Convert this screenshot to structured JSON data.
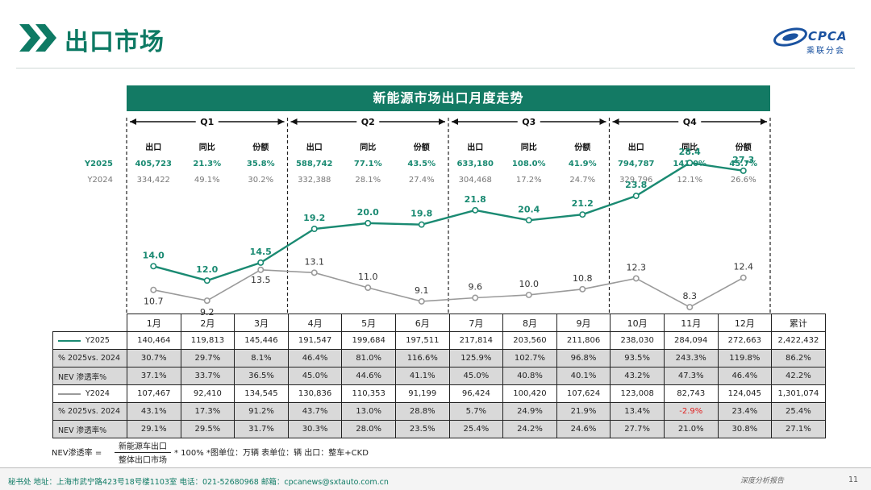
{
  "header": {
    "title": "出口市场",
    "logo_text": "CPCA",
    "logo_sub": "乘联分会"
  },
  "banner": "新能源市场出口月度走势",
  "chart_data": {
    "type": "line",
    "title": "新能源市场出口月度走势",
    "categories": [
      "1月",
      "2月",
      "3月",
      "4月",
      "5月",
      "6月",
      "7月",
      "8月",
      "9月",
      "10月",
      "11月",
      "12月"
    ],
    "series": [
      {
        "name": "Y2025",
        "color": "#1a8a72",
        "values": [
          14.0,
          12.0,
          14.5,
          19.2,
          20.0,
          19.8,
          21.8,
          20.4,
          21.2,
          23.8,
          28.4,
          27.3
        ]
      },
      {
        "name": "Y2024",
        "color": "#9a9a9a",
        "values": [
          10.7,
          9.2,
          13.5,
          13.1,
          11.0,
          9.1,
          9.6,
          10.0,
          10.8,
          12.3,
          8.3,
          12.4
        ]
      }
    ],
    "ylim": [
      0,
      32
    ],
    "quarters": [
      {
        "label": "Q1",
        "cols": [
          "出口",
          "同比",
          "份额"
        ],
        "y2025": [
          "405,723",
          "21.3%",
          "35.8%"
        ],
        "y2024": [
          "334,422",
          "49.1%",
          "30.2%"
        ]
      },
      {
        "label": "Q2",
        "cols": [
          "出口",
          "同比",
          "份额"
        ],
        "y2025": [
          "588,742",
          "77.1%",
          "43.5%"
        ],
        "y2024": [
          "332,388",
          "28.1%",
          "27.4%"
        ]
      },
      {
        "label": "Q3",
        "cols": [
          "出口",
          "同比",
          "份额"
        ],
        "y2025": [
          "633,180",
          "108.0%",
          "41.9%"
        ],
        "y2024": [
          "304,468",
          "17.2%",
          "24.7%"
        ]
      },
      {
        "label": "Q4",
        "cols": [
          "出口",
          "同比",
          "份额"
        ],
        "y2025": [
          "794,787",
          "141.0%",
          "45.7%"
        ],
        "y2024": [
          "329,796",
          "12.1%",
          "26.6%"
        ]
      }
    ],
    "quarter_row_labels": [
      "Y2025",
      "Y2024"
    ]
  },
  "table": {
    "headers": [
      "1月",
      "2月",
      "3月",
      "4月",
      "5月",
      "6月",
      "7月",
      "8月",
      "9月",
      "10月",
      "11月",
      "12月",
      "累计"
    ],
    "rows": [
      {
        "label": "Y2025",
        "swatch": "#1a8a72",
        "shade": false,
        "values": [
          "140,464",
          "119,813",
          "145,446",
          "191,547",
          "199,684",
          "197,511",
          "217,814",
          "203,560",
          "211,806",
          "238,030",
          "284,094",
          "272,663",
          "2,422,432"
        ]
      },
      {
        "label": "% 2025vs. 2024",
        "shade": true,
        "values": [
          "30.7%",
          "29.7%",
          "8.1%",
          "46.4%",
          "81.0%",
          "116.6%",
          "125.9%",
          "102.7%",
          "96.8%",
          "93.5%",
          "243.3%",
          "119.8%",
          "86.2%"
        ]
      },
      {
        "label": "NEV 渗透率%",
        "shade": true,
        "values": [
          "37.1%",
          "33.7%",
          "36.5%",
          "45.0%",
          "44.6%",
          "41.1%",
          "45.0%",
          "40.8%",
          "40.1%",
          "43.2%",
          "47.3%",
          "46.4%",
          "42.2%"
        ]
      },
      {
        "label": "Y2024",
        "swatch": "#9a9a9a",
        "shade": false,
        "values": [
          "107,467",
          "92,410",
          "134,545",
          "130,836",
          "110,353",
          "91,199",
          "96,424",
          "100,420",
          "107,624",
          "123,008",
          "82,743",
          "124,045",
          "1,301,074"
        ]
      },
      {
        "label": "% 2025vs. 2024",
        "shade": true,
        "values": [
          "43.1%",
          "17.3%",
          "91.2%",
          "43.7%",
          "13.0%",
          "28.8%",
          "5.7%",
          "24.9%",
          "21.9%",
          "13.4%",
          "-2.9%",
          "23.4%",
          "25.4%"
        ]
      },
      {
        "label": "NEV 渗透率%",
        "shade": true,
        "values": [
          "29.1%",
          "29.5%",
          "31.7%",
          "30.3%",
          "28.0%",
          "23.5%",
          "25.4%",
          "24.2%",
          "24.6%",
          "27.7%",
          "21.0%",
          "30.8%",
          "27.1%"
        ]
      }
    ]
  },
  "formula": {
    "label": "NEV渗透率 =",
    "numerator": "新能源车出口",
    "denominator": "整体出口市场",
    "rest": "* 100%   *图单位：万辆   表单位：辆     出口：整车+CKD"
  },
  "footer": {
    "text": "秘书处   地址：上海市武宁路423号18号楼1103室  电话：021-52680968   邮箱：cpcanews@sxtauto.com.cn",
    "right": "深度分析报告",
    "page": "11"
  }
}
